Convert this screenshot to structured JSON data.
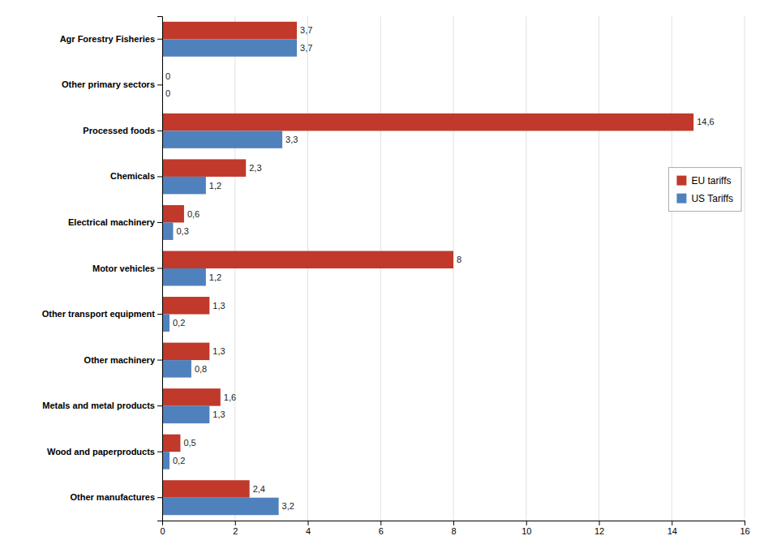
{
  "chart_data": {
    "type": "bar",
    "orientation": "horizontal",
    "categories": [
      "Other manufactures",
      "Wood and paperproducts",
      "Metals and metal products",
      "Other machinery",
      "Other transport equipment",
      "Motor vehicles",
      "Electrical machinery",
      "Chemicals",
      "Processed foods",
      "Other primary sectors",
      "Agr Forestry Fisheries"
    ],
    "series": [
      {
        "name": "EU tariffs",
        "color": "#C0392B",
        "values": [
          2.4,
          0.5,
          1.6,
          1.3,
          1.3,
          8.0,
          0.6,
          2.3,
          14.6,
          0.0,
          3.7
        ],
        "value_labels": [
          "2,4",
          "0,5",
          "1,6",
          "1,3",
          "1,3",
          "8",
          "0,6",
          "2,3",
          "14,6",
          "0",
          "3,7"
        ]
      },
      {
        "name": "US Tariffs",
        "color": "#4F81BD",
        "values": [
          3.2,
          0.2,
          1.3,
          0.8,
          0.2,
          1.2,
          0.3,
          1.2,
          3.3,
          0.0,
          3.7
        ],
        "value_labels": [
          "3,2",
          "0,2",
          "1,3",
          "0,8",
          "0,2",
          "1,2",
          "0,3",
          "1,2",
          "3,3",
          "0",
          "3,7"
        ]
      }
    ],
    "xlim": [
      0,
      16
    ],
    "xticks": [
      0,
      2,
      4,
      6,
      8,
      10,
      12,
      14,
      16
    ],
    "grid": true,
    "legend": "upper right",
    "data_labels": true
  }
}
